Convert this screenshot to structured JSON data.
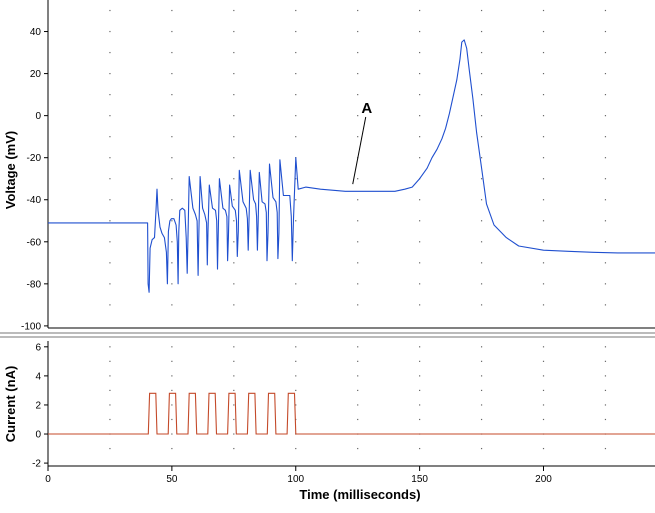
{
  "chart_data": [
    {
      "type": "line",
      "ylabel": "Voltage (mV)",
      "xlim": [
        0,
        245
      ],
      "ylim": [
        -101,
        55
      ],
      "yticks": [
        -100,
        -80,
        -60,
        -40,
        -20,
        0,
        20,
        40
      ],
      "grid": "dotted",
      "colors": {
        "line": "#1f4fcf"
      },
      "annotation": {
        "text": "A",
        "x": 123,
        "y": -34
      },
      "series": [
        {
          "x": [
            0,
            40.2,
            40.4,
            40.8,
            41.2,
            42,
            43,
            43.6,
            44,
            44.4,
            44.8,
            45.2,
            46,
            47,
            47.8,
            48.2,
            48.6,
            49.2,
            49.8,
            50.8,
            51.7,
            52.2,
            52.5,
            52.8,
            53.2,
            54.2,
            55.2,
            55.8,
            56.2,
            56.6,
            57,
            58.5,
            59.5,
            60.2,
            60.6,
            60.9,
            61.4,
            62.4,
            63.3,
            64,
            64.3,
            64.6,
            65.1,
            66.4,
            67.6,
            68.1,
            68.4,
            68.7,
            69.2,
            70.6,
            71.6,
            72.2,
            72.5,
            72.8,
            73.3,
            74.4,
            75.6,
            76.1,
            76.4,
            76.8,
            77.2,
            78.7,
            80,
            80.5,
            80.8,
            81.1,
            81.6,
            83,
            83.8,
            84.2,
            84.5,
            84.8,
            85.3,
            86.4,
            87.6,
            88.1,
            88.4,
            88.8,
            89.4,
            90.8,
            92,
            92.5,
            92.8,
            93.2,
            93.6,
            95,
            97.6,
            98.2,
            98.6,
            99.1,
            100,
            101,
            104,
            110,
            120,
            130,
            140,
            144,
            147,
            150,
            153,
            155,
            157,
            159,
            160.5,
            162,
            163.5,
            165,
            166.3,
            167,
            168,
            169,
            170,
            171.5,
            173,
            175,
            177,
            180,
            185,
            190,
            200,
            210,
            220,
            230,
            245
          ],
          "values": [
            -51,
            -51,
            -80,
            -84,
            -63,
            -59,
            -58,
            -45,
            -35,
            -45,
            -49,
            -53,
            -56,
            -58,
            -65,
            -80,
            -55,
            -50,
            -49,
            -49,
            -52,
            -60,
            -80,
            -55,
            -45,
            -44,
            -45,
            -58,
            -75,
            -53,
            -29,
            -44,
            -47,
            -50,
            -76,
            -55,
            -29,
            -44,
            -47,
            -51,
            -71,
            -55,
            -33,
            -44,
            -45,
            -50,
            -73,
            -57,
            -30,
            -44,
            -45,
            -48,
            -69,
            -58,
            -33,
            -43,
            -45,
            -50,
            -67,
            -55,
            -26,
            -41,
            -44,
            -49,
            -64,
            -52,
            -26,
            -40,
            -42,
            -48,
            -64,
            -52,
            -27,
            -41,
            -42,
            -46,
            -69,
            -56,
            -23,
            -39,
            -41,
            -46,
            -68,
            -56,
            -21,
            -38,
            -38,
            -48,
            -69,
            -49,
            -20,
            -35,
            -34,
            -35,
            -36,
            -36,
            -36,
            -35,
            -34,
            -30,
            -25,
            -20,
            -16,
            -11,
            -6,
            1,
            9,
            17,
            27,
            35,
            36,
            32,
            22,
            8,
            -8,
            -25,
            -42,
            -52,
            -58,
            -62,
            -64,
            -64.5,
            -65,
            -65.3,
            -65.3
          ]
        }
      ]
    },
    {
      "type": "line",
      "ylabel": "Current (nA)",
      "xlabel": "Time (milliseconds)",
      "xlim": [
        0,
        245
      ],
      "ylim": [
        -2.2,
        6.4
      ],
      "xticks": [
        0,
        50,
        100,
        150,
        200
      ],
      "yticks": [
        -2,
        0,
        2,
        4,
        6
      ],
      "grid": "dotted",
      "colors": {
        "line": "#c44a2a"
      },
      "series": [
        {
          "x": [
            0,
            40.5,
            41,
            43.5,
            44,
            48.5,
            49,
            51.5,
            52,
            56.5,
            57,
            59.5,
            60,
            64.5,
            65,
            67.5,
            68,
            72.5,
            73,
            75.5,
            76,
            80.5,
            81,
            83.5,
            84,
            88.5,
            89,
            91.5,
            92,
            96.5,
            97,
            99.5,
            100,
            245
          ],
          "values": [
            0,
            0,
            2.8,
            2.8,
            0,
            0,
            2.8,
            2.8,
            0,
            0,
            2.8,
            2.8,
            0,
            0,
            2.8,
            2.8,
            0,
            0,
            2.8,
            2.8,
            0,
            0,
            2.8,
            2.8,
            0,
            0,
            2.8,
            2.8,
            0,
            0,
            2.8,
            2.8,
            0,
            0
          ]
        }
      ]
    }
  ]
}
